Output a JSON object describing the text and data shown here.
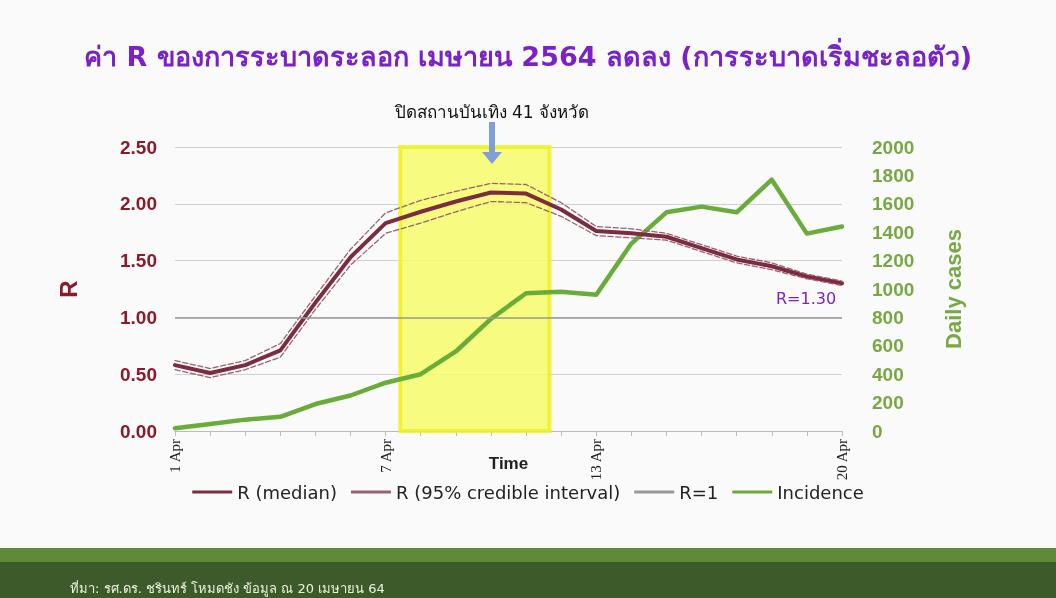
{
  "chart_data": {
    "type": "line",
    "title": "ค่า R ของการระบาดระลอก เมษายน 2564 ลดลง (การระบาดเริ่มชะลอตัว)",
    "xlabel": "Time",
    "ylabel": "R",
    "y2label": "Daily cases",
    "x": [
      "--04-01",
      "--04-02",
      "--04-03",
      "--04-04",
      "--04-05",
      "--04-06",
      "--04-07",
      "--04-08",
      "--04-09",
      "--04-10",
      "--04-11",
      "--04-12",
      "--04-13",
      "--04-14",
      "--04-15",
      "--04-16",
      "--04-17",
      "--04-18",
      "--04-19",
      "--04-20"
    ],
    "xlim": [
      "--04-01",
      "--04-20"
    ],
    "xticks": [
      {
        "value": "--04-01",
        "label": "1 Apr"
      },
      {
        "value": "--04-02",
        "label": null
      },
      {
        "value": "--04-03",
        "label": null
      },
      {
        "value": "--04-04",
        "label": null
      },
      {
        "value": "--04-05",
        "label": null
      },
      {
        "value": "--04-06",
        "label": null
      },
      {
        "value": "--04-07",
        "label": "7 Apr"
      },
      {
        "value": "--04-08",
        "label": null
      },
      {
        "value": "--04-09",
        "label": null
      },
      {
        "value": "--04-10",
        "label": null
      },
      {
        "value": "--04-11",
        "label": null
      },
      {
        "value": "--04-12",
        "label": null
      },
      {
        "value": "--04-13",
        "label": "13 Apr"
      },
      {
        "value": "--04-14",
        "label": null
      },
      {
        "value": "--04-15",
        "label": null
      },
      {
        "value": "--04-16",
        "label": null
      },
      {
        "value": "--04-17",
        "label": null
      },
      {
        "value": "--04-18",
        "label": null
      },
      {
        "value": "--04-19",
        "label": null
      },
      {
        "value": "--04-20",
        "label": "20 Apr"
      }
    ],
    "ylim": [
      0,
      2.5
    ],
    "yticks": [
      {
        "value": 0,
        "label": "0.00"
      },
      {
        "value": 0.5,
        "label": "0.50"
      },
      {
        "value": 1,
        "label": "1.00"
      },
      {
        "value": 1.5,
        "label": "1.50"
      },
      {
        "value": 2,
        "label": "2.00"
      },
      {
        "value": 2.5,
        "label": "2.50"
      }
    ],
    "y2lim": [
      0,
      2000
    ],
    "y2ticks": [
      0,
      200,
      400,
      600,
      800,
      1000,
      1200,
      1400,
      1600,
      1800,
      2000
    ],
    "series": [
      {
        "name": "R (median)",
        "color": "#7b2c3f",
        "values": [
          0.58,
          0.51,
          0.58,
          0.71,
          1.13,
          1.53,
          1.83,
          1.93,
          2.02,
          2.1,
          2.09,
          1.95,
          1.76,
          1.74,
          1.71,
          1.61,
          1.51,
          1.45,
          1.36,
          1.3
        ]
      },
      {
        "name": "R (95% credible interval)",
        "color": "#9b6070",
        "line_style": "dashed",
        "values": [
          0.62,
          0.55,
          0.62,
          0.77,
          1.19,
          1.6,
          1.92,
          2.03,
          2.11,
          2.18,
          2.17,
          2.01,
          1.8,
          1.78,
          1.74,
          1.64,
          1.54,
          1.48,
          1.38,
          1.32
        ]
      },
      {
        "color": "#9b6070",
        "line_style": "dashed",
        "values": [
          0.54,
          0.47,
          0.54,
          0.65,
          1.07,
          1.46,
          1.74,
          1.83,
          1.93,
          2.02,
          2.01,
          1.89,
          1.72,
          1.7,
          1.68,
          1.58,
          1.48,
          1.42,
          1.34,
          1.28
        ]
      },
      {
        "name": "Incidence",
        "color": "#6aac3a",
        "axis": "y2",
        "values": [
          20,
          50,
          80,
          100,
          190,
          250,
          340,
          400,
          560,
          790,
          970,
          980,
          960,
          1320,
          1540,
          1580,
          1540,
          1770,
          1390,
          1440
        ]
      }
    ],
    "ref_lines": [
      {
        "axis": "y",
        "value": 1,
        "label": "R=1",
        "color": "#999999"
      }
    ],
    "bands": [
      {
        "axis": "x",
        "from": "--04-07T10:00",
        "to": "--04-11T16:00",
        "color": "#f6fb6a"
      }
    ],
    "annotations": [
      "ปิดสถานบันเทิง 41 จังหวัด",
      {
        "text": "R=1.30",
        "x": "--04-20",
        "y": 1.3
      },
      "ที่มา: รศ.ดร. ชรินทร์ โหมดชัง ข้อมูล ณ 20 เมษายน 64"
    ],
    "grid": "y",
    "legend": "bottom",
    "marker": "none",
    "line_style": "solid"
  }
}
